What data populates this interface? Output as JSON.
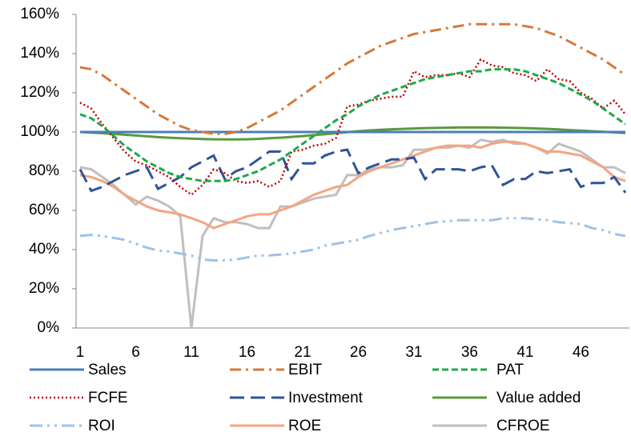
{
  "chart_data": {
    "type": "line",
    "categories": [
      1,
      null,
      null,
      null,
      null,
      6,
      null,
      null,
      null,
      null,
      11,
      null,
      null,
      null,
      null,
      16,
      null,
      null,
      null,
      null,
      21,
      null,
      null,
      null,
      null,
      26,
      null,
      null,
      null,
      null,
      31,
      null,
      null,
      null,
      null,
      36,
      null,
      null,
      null,
      null,
      41,
      null,
      null,
      null,
      null,
      46,
      null,
      null,
      null,
      null
    ],
    "ylim": [
      0,
      160
    ],
    "yticks": [
      {
        "value": 0,
        "label": "0%"
      },
      {
        "value": 20,
        "label": "20%"
      },
      {
        "value": 40,
        "label": "40%"
      },
      {
        "value": 60,
        "label": "60%"
      },
      {
        "value": 80,
        "label": "80%"
      },
      {
        "value": 100,
        "label": "100%"
      },
      {
        "value": 120,
        "label": "120%"
      },
      {
        "value": 140,
        "label": "140%"
      },
      {
        "value": 160,
        "label": "160%"
      }
    ],
    "grid": false,
    "legend": "bottom",
    "series": [
      {
        "name": "Sales",
        "color": "#4a7ebb",
        "values": [
          100,
          100,
          100,
          100,
          100,
          100,
          100,
          100,
          100,
          100,
          100,
          100,
          100,
          100,
          100,
          100,
          100,
          100,
          100,
          100,
          100,
          100,
          100,
          100,
          100,
          100,
          100,
          100,
          100,
          100,
          100,
          100,
          100,
          100,
          100,
          100,
          100,
          100,
          100,
          100,
          100,
          100,
          100,
          100,
          100,
          100,
          100,
          100,
          100,
          100
        ]
      },
      {
        "name": "EBIT",
        "color": "#d6793a",
        "values": [
          133,
          132,
          129,
          125,
          121,
          117,
          113,
          109,
          106,
          103,
          101,
          100,
          99,
          99,
          100,
          102,
          105,
          108,
          111,
          115,
          119,
          123,
          127,
          131,
          135,
          138,
          141,
          144,
          146,
          148,
          150,
          151,
          152,
          153,
          154,
          155,
          155,
          155,
          155,
          155,
          154,
          153,
          151,
          149,
          146,
          143,
          140,
          137,
          133,
          129
        ]
      },
      {
        "name": "PAT",
        "color": "#1ea84c",
        "values": [
          109,
          107,
          103,
          98,
          93,
          89,
          85,
          82,
          79,
          77,
          76,
          75,
          75,
          75,
          76,
          78,
          80,
          83,
          86,
          90,
          94,
          98,
          102,
          106,
          109,
          113,
          116,
          119,
          121,
          123,
          125,
          127,
          128,
          129,
          130,
          131,
          131,
          132,
          132,
          132,
          131,
          129,
          127,
          125,
          122,
          119,
          116,
          112,
          108,
          104
        ]
      },
      {
        "name": "FCFE",
        "color": "#c00000",
        "values": [
          115,
          112,
          104,
          97,
          90,
          85,
          83,
          80,
          77,
          72,
          68,
          73,
          81,
          79,
          75,
          74,
          75,
          72,
          75,
          90,
          91,
          93,
          94,
          97,
          113,
          114,
          116,
          117,
          118,
          118,
          131,
          128,
          129,
          129,
          130,
          128,
          137,
          134,
          133,
          130,
          129,
          126,
          132,
          127,
          126,
          120,
          117,
          112,
          116,
          109
        ]
      },
      {
        "name": "Investment",
        "color": "#2f5597",
        "values": [
          81,
          70,
          72,
          75,
          78,
          80,
          82,
          71,
          74,
          77,
          82,
          85,
          88,
          76,
          80,
          82,
          86,
          90,
          90,
          76,
          84,
          84,
          88,
          90,
          91,
          79,
          82,
          84,
          86,
          86,
          87,
          76,
          81,
          81,
          81,
          80,
          82,
          83,
          73,
          76,
          76,
          80,
          79,
          80,
          81,
          72,
          74,
          74,
          77,
          69
        ]
      },
      {
        "name": "Value added",
        "color": "#5b9a3c",
        "values": [
          100,
          99.7,
          99.4,
          99,
          98.6,
          98.2,
          97.8,
          97.4,
          97.1,
          96.8,
          96.6,
          96.4,
          96.3,
          96.2,
          96.2,
          96.3,
          96.5,
          96.8,
          97.1,
          97.5,
          97.9,
          98.4,
          98.9,
          99.4,
          99.9,
          100.4,
          100.8,
          101.1,
          101.4,
          101.6,
          101.8,
          102,
          102.1,
          102.2,
          102.3,
          102.3,
          102.3,
          102.3,
          102.2,
          102.1,
          102,
          101.8,
          101.6,
          101.3,
          101,
          100.7,
          100.4,
          100.1,
          99.8,
          99.5
        ]
      },
      {
        "name": "ROI",
        "color": "#9dc3e6",
        "values": [
          47,
          47.5,
          47,
          46,
          45,
          43,
          41,
          39.5,
          39,
          38,
          37,
          35,
          34.5,
          34.5,
          35,
          36,
          37,
          37,
          37.5,
          38,
          39,
          40,
          42,
          43,
          44,
          45,
          47,
          48.5,
          50,
          51,
          52,
          53,
          54,
          54.5,
          55,
          55,
          55,
          55,
          56,
          56,
          56,
          55.5,
          55,
          54,
          53.5,
          53,
          51,
          50,
          48,
          47
        ]
      },
      {
        "name": "ROE",
        "color": "#f4a582",
        "values": [
          78,
          77,
          75,
          72,
          68,
          65,
          62,
          60,
          59,
          58,
          56,
          54,
          51,
          53,
          55,
          57,
          58,
          58,
          60,
          62,
          65,
          68,
          70,
          72,
          73,
          77,
          80,
          82,
          84,
          86,
          88,
          90,
          92,
          93,
          93,
          93,
          92,
          94,
          95,
          95,
          94,
          92,
          90,
          90,
          89,
          88,
          85,
          82,
          77,
          75
        ]
      },
      {
        "name": "CFROE",
        "color": "#bfbfbf",
        "values": [
          82,
          81,
          77,
          73,
          68,
          63,
          67,
          65,
          62,
          57,
          0,
          47,
          56,
          54,
          54,
          53,
          51,
          51,
          62,
          62,
          64,
          66,
          67,
          68,
          78,
          78,
          81,
          82,
          82,
          83,
          91,
          91,
          92,
          92,
          93,
          92,
          96,
          95,
          96,
          94,
          94,
          92,
          89,
          94,
          92,
          90,
          86,
          82,
          82,
          79
        ]
      }
    ]
  }
}
